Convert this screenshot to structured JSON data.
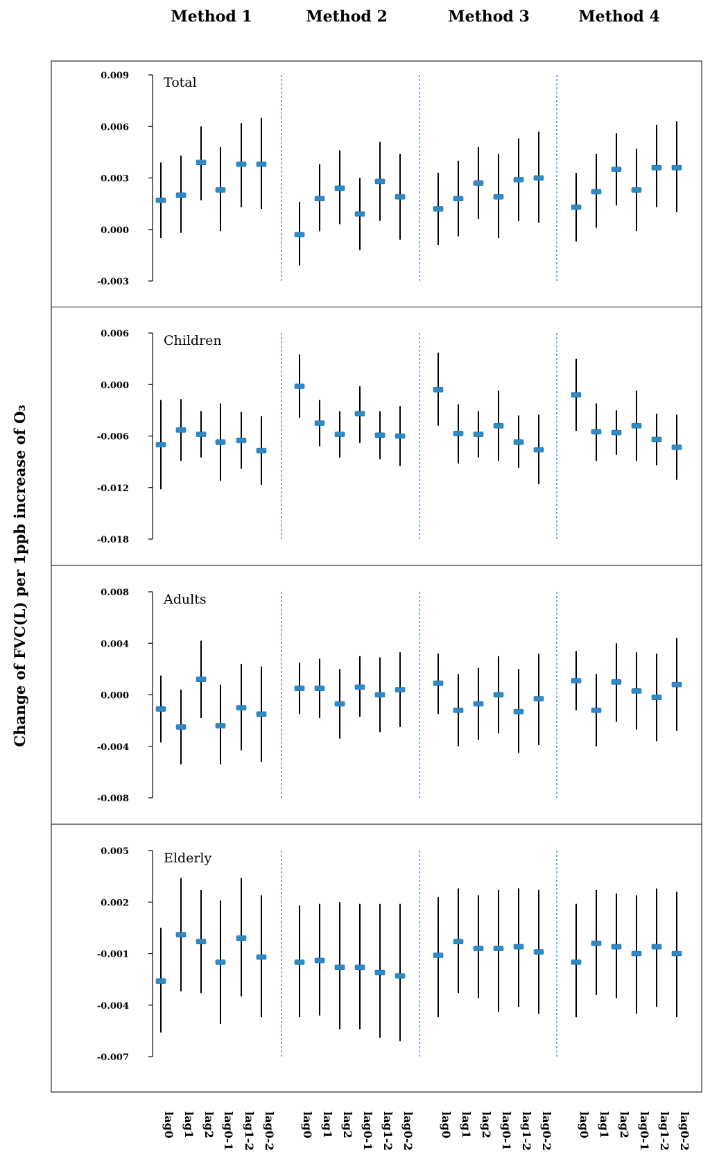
{
  "chart_data": {
    "type": "scatter",
    "ylabel": "Change of FVC(L) per 1ppb increase of O₃",
    "methods": [
      "Method 1",
      "Method 2",
      "Method 3",
      "Method 4"
    ],
    "lags": [
      "lag0",
      "lag1",
      "lag2",
      "lag0-1",
      "lag1-2",
      "lag0-2"
    ],
    "colors": {
      "marker": "#2e8bc7",
      "whisker": "#000000",
      "divider": "#3a7fc4"
    },
    "panels": [
      {
        "name": "Total",
        "ylim": [
          -0.003,
          0.009
        ],
        "ticks": [
          "0.009",
          "0.006",
          "0.003",
          "0.000",
          "-0.003"
        ],
        "series": [
          {
            "method": "Method 1",
            "est": [
              0.0017,
              0.002,
              0.0039,
              0.0023,
              0.0038,
              0.0038
            ],
            "low": [
              -0.0005,
              -0.0002,
              0.0017,
              -0.0001,
              0.0013,
              0.0012
            ],
            "high": [
              0.0039,
              0.0043,
              0.006,
              0.0048,
              0.0062,
              0.0065
            ]
          },
          {
            "method": "Method 2",
            "est": [
              -0.0003,
              0.0018,
              0.0024,
              0.0009,
              0.0028,
              0.0019
            ],
            "low": [
              -0.0021,
              -0.0001,
              0.0003,
              -0.0012,
              0.0005,
              -0.0006
            ],
            "high": [
              0.0016,
              0.0038,
              0.0046,
              0.003,
              0.0051,
              0.0044
            ]
          },
          {
            "method": "Method 3",
            "est": [
              0.0012,
              0.0018,
              0.0027,
              0.0019,
              0.0029,
              0.003
            ],
            "low": [
              -0.0009,
              -0.0004,
              0.0006,
              -0.0005,
              0.0005,
              0.0004
            ],
            "high": [
              0.0033,
              0.004,
              0.0048,
              0.0044,
              0.0053,
              0.0057
            ]
          },
          {
            "method": "Method 4",
            "est": [
              0.0013,
              0.0022,
              0.0035,
              0.0023,
              0.0036,
              0.0036
            ],
            "low": [
              -0.0007,
              0.0001,
              0.0014,
              -0.0001,
              0.0013,
              0.001
            ],
            "high": [
              0.0033,
              0.0044,
              0.0056,
              0.0047,
              0.0061,
              0.0063
            ]
          }
        ]
      },
      {
        "name": "Children",
        "ylim": [
          -0.018,
          0.006
        ],
        "ticks": [
          "0.006",
          "0.000",
          "-0.006",
          "-0.012",
          "-0.018"
        ],
        "series": [
          {
            "method": "Method 1",
            "est": [
              -0.007,
              -0.0053,
              -0.0058,
              -0.0067,
              -0.0065,
              -0.0077
            ],
            "low": [
              -0.0122,
              -0.0089,
              -0.0085,
              -0.0112,
              -0.0098,
              -0.0117
            ],
            "high": [
              -0.0018,
              -0.0017,
              -0.0031,
              -0.0022,
              -0.0032,
              -0.0037
            ]
          },
          {
            "method": "Method 2",
            "est": [
              -0.0002,
              -0.0045,
              -0.0058,
              -0.0034,
              -0.0059,
              -0.006
            ],
            "low": [
              -0.0039,
              -0.0072,
              -0.0085,
              -0.0068,
              -0.0087,
              -0.0095
            ],
            "high": [
              0.0035,
              -0.0018,
              -0.0031,
              -0.0002,
              -0.0031,
              -0.0025
            ]
          },
          {
            "method": "Method 3",
            "est": [
              -0.0006,
              -0.0057,
              -0.0058,
              -0.0048,
              -0.0067,
              -0.0076
            ],
            "low": [
              -0.0048,
              -0.0092,
              -0.0085,
              -0.0089,
              -0.0097,
              -0.0116
            ],
            "high": [
              0.0037,
              -0.0023,
              -0.0031,
              -0.0007,
              -0.0036,
              -0.0035
            ]
          },
          {
            "method": "Method 4",
            "est": [
              -0.0012,
              -0.0055,
              -0.0056,
              -0.0048,
              -0.0064,
              -0.0073
            ],
            "low": [
              -0.0054,
              -0.0089,
              -0.0082,
              -0.0089,
              -0.0094,
              -0.0111
            ],
            "high": [
              0.003,
              -0.0022,
              -0.003,
              -0.0007,
              -0.0034,
              -0.0035
            ]
          }
        ]
      },
      {
        "name": "Adults",
        "ylim": [
          -0.008,
          0.008
        ],
        "ticks": [
          "0.008",
          "0.004",
          "0.000",
          "-0.004",
          "-0.008"
        ],
        "series": [
          {
            "method": "Method 1",
            "est": [
              -0.0011,
              -0.0025,
              0.0012,
              -0.0024,
              -0.001,
              -0.0015
            ],
            "low": [
              -0.0037,
              -0.0054,
              -0.0018,
              -0.0054,
              -0.0043,
              -0.0052
            ],
            "high": [
              0.0015,
              0.0004,
              0.0042,
              0.0008,
              0.0024,
              0.0022
            ]
          },
          {
            "method": "Method 2",
            "est": [
              0.0005,
              0.0005,
              -0.0007,
              0.0006,
              0.0,
              0.0004
            ],
            "low": [
              -0.0015,
              -0.0018,
              -0.0034,
              -0.0017,
              -0.0029,
              -0.0025
            ],
            "high": [
              0.0025,
              0.0028,
              0.002,
              0.003,
              0.0029,
              0.0033
            ]
          },
          {
            "method": "Method 3",
            "est": [
              0.0009,
              -0.0012,
              -0.0007,
              0.0,
              -0.0013,
              -0.0003
            ],
            "low": [
              -0.0015,
              -0.004,
              -0.0035,
              -0.003,
              -0.0045,
              -0.0039
            ],
            "high": [
              0.0032,
              0.0016,
              0.0021,
              0.003,
              0.002,
              0.0032
            ]
          },
          {
            "method": "Method 4",
            "est": [
              0.0011,
              -0.0012,
              0.001,
              0.0003,
              -0.0002,
              0.0008
            ],
            "low": [
              -0.0012,
              -0.004,
              -0.0021,
              -0.0027,
              -0.0036,
              -0.0028
            ],
            "high": [
              0.0034,
              0.0016,
              0.004,
              0.0033,
              0.0032,
              0.0044
            ]
          }
        ]
      },
      {
        "name": "Elderly",
        "ylim": [
          -0.007,
          0.005
        ],
        "ticks": [
          "0.005",
          "0.002",
          "-0.001",
          "-0.004",
          "-0.007"
        ],
        "series": [
          {
            "method": "Method 1",
            "est": [
              -0.0026,
              0.0001,
              -0.0003,
              -0.0015,
              -0.0001,
              -0.0012
            ],
            "low": [
              -0.0056,
              -0.0032,
              -0.0033,
              -0.0051,
              -0.0035,
              -0.0047
            ],
            "high": [
              0.0005,
              0.0034,
              0.0027,
              0.0021,
              0.0034,
              0.0024
            ]
          },
          {
            "method": "Method 2",
            "est": [
              -0.0015,
              -0.0014,
              -0.0018,
              -0.0018,
              -0.0021,
              -0.0023
            ],
            "low": [
              -0.0047,
              -0.0046,
              -0.0054,
              -0.0054,
              -0.0059,
              -0.0061
            ],
            "high": [
              0.0018,
              0.0019,
              0.002,
              0.0019,
              0.0019,
              0.0019
            ]
          },
          {
            "method": "Method 3",
            "est": [
              -0.0011,
              -0.0003,
              -0.0007,
              -0.0007,
              -0.0006,
              -0.0009
            ],
            "low": [
              -0.0047,
              -0.0033,
              -0.0036,
              -0.0044,
              -0.0041,
              -0.0045
            ],
            "high": [
              0.0023,
              0.0028,
              0.0024,
              0.0027,
              0.0028,
              0.0027
            ]
          },
          {
            "method": "Method 4",
            "est": [
              -0.0015,
              -0.0004,
              -0.0006,
              -0.001,
              -0.0006,
              -0.001
            ],
            "low": [
              -0.0047,
              -0.0034,
              -0.0036,
              -0.0045,
              -0.0041,
              -0.0047
            ],
            "high": [
              0.0019,
              0.0027,
              0.0025,
              0.0024,
              0.0028,
              0.0026
            ]
          }
        ]
      }
    ]
  }
}
